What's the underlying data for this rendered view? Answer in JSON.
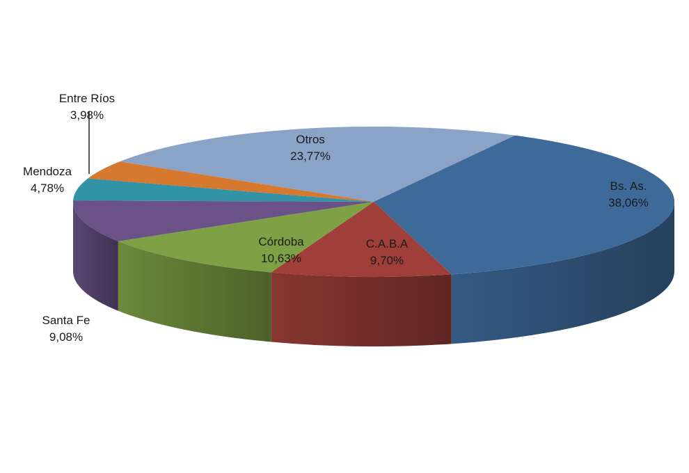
{
  "chart_data": {
    "type": "pie",
    "style": "3d",
    "slices": [
      {
        "name": "Bs. As.",
        "value": 38.06,
        "label": "38,06%",
        "color": "#3E6A9A"
      },
      {
        "name": "C.A.B.A",
        "value": 9.7,
        "label": "9,70%",
        "color": "#A03F3A"
      },
      {
        "name": "Córdoba",
        "value": 10.63,
        "label": "10,63%",
        "color": "#7FA145"
      },
      {
        "name": "Santa Fe",
        "value": 9.08,
        "label": "9,08%",
        "color": "#6A5287"
      },
      {
        "name": "Mendoza",
        "value": 4.78,
        "label": "4,78%",
        "color": "#3393A6"
      },
      {
        "name": "Entre Ríos",
        "value": 3.98,
        "label": "3,98%",
        "color": "#D7782F"
      },
      {
        "name": "Otros",
        "value": 23.77,
        "label": "23,77%",
        "color": "#8BA3C7"
      }
    ],
    "legend": "none"
  }
}
